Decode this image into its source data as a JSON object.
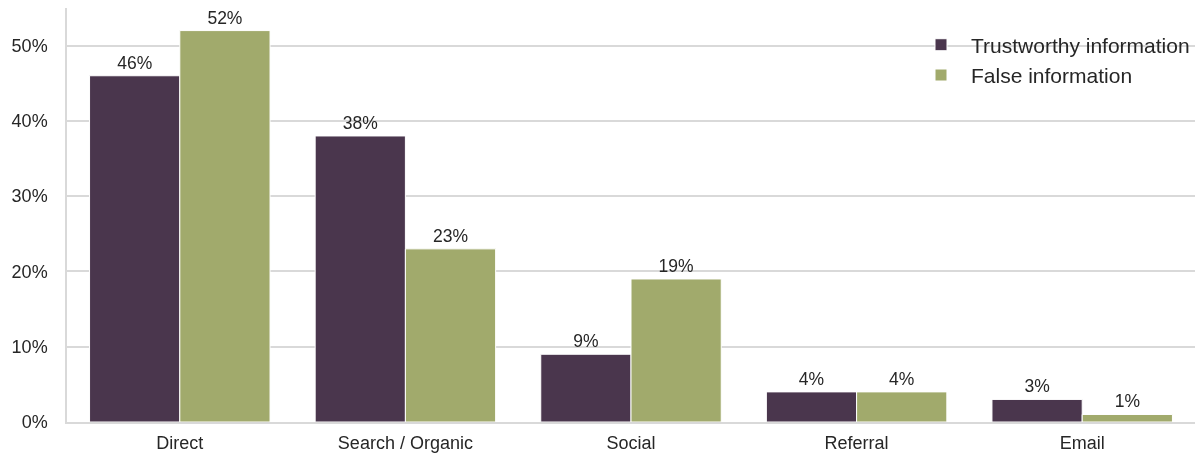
{
  "chart_data": {
    "type": "bar",
    "categories": [
      "Direct",
      "Search / Organic",
      "Social",
      "Referral",
      "Email"
    ],
    "series": [
      {
        "name": "Trustworthy information",
        "color": "#4a364d",
        "values": [
          46,
          38,
          9,
          4,
          3
        ],
        "value_labels": [
          "46%",
          "38%",
          "9%",
          "4%",
          "3%"
        ]
      },
      {
        "name": "False information",
        "color": "#a1aa6c",
        "values": [
          52,
          23,
          19,
          4,
          1
        ],
        "value_labels": [
          "52%",
          "23%",
          "19%",
          "4%",
          "1%"
        ]
      }
    ],
    "ylim": [
      0,
      55
    ],
    "yticks": [
      {
        "value": 0,
        "label": "0%"
      },
      {
        "value": 10,
        "label": "10%"
      },
      {
        "value": 20,
        "label": "20%"
      },
      {
        "value": 30,
        "label": "30%"
      },
      {
        "value": 40,
        "label": "40%"
      },
      {
        "value": 50,
        "label": "50%"
      }
    ],
    "grid": "y",
    "legend": "top right"
  }
}
